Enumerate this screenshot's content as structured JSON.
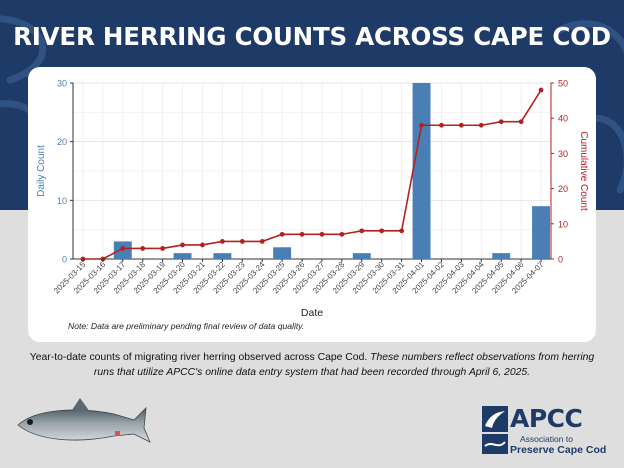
{
  "page": {
    "title": "RIVER HERRING COUNTS ACROSS CAPE COD",
    "caption_normal": "Year-to-date counts of migrating river herring observed across Cape Cod.",
    "caption_italic": "These numbers reflect observations from herring runs that utilize APCC's online data entry system that had been recorded through April 6, 2025.",
    "logo_name": "APCC",
    "logo_sub1": "Association to",
    "logo_sub2": "Preserve Cape Cod",
    "colors": {
      "banner": "#1e3a66",
      "bar": "#4a7fb5",
      "line": "#b22222",
      "background": "#dedede"
    }
  },
  "chart_data": {
    "type": "bar+line",
    "xlabel": "Date",
    "ylabel_left": "Daily Count",
    "ylabel_right": "Cumulative Count",
    "note": "Note: Data are preliminary pending final review of data quality.",
    "ylim_left": [
      0,
      30
    ],
    "ylim_right": [
      0,
      50
    ],
    "yticks_left": [
      0,
      10,
      20,
      30
    ],
    "yticks_right": [
      0,
      10,
      20,
      30,
      40,
      50
    ],
    "grid": true,
    "categories": [
      "2025-03-15",
      "2025-03-16",
      "2025-03-17",
      "2025-03-18",
      "2025-03-19",
      "2025-03-20",
      "2025-03-21",
      "2025-03-22",
      "2025-03-23",
      "2025-03-24",
      "2025-03-25",
      "2025-03-26",
      "2025-03-27",
      "2025-03-28",
      "2025-03-29",
      "2025-03-30",
      "2025-03-31",
      "2025-04-01",
      "2025-04-02",
      "2025-04-03",
      "2025-04-04",
      "2025-04-05",
      "2025-04-06",
      "2025-04-07"
    ],
    "series": [
      {
        "values": [
          0,
          0,
          3,
          0,
          0,
          1,
          0,
          1,
          0,
          0,
          2,
          0,
          0,
          0,
          1,
          0,
          0,
          30,
          0,
          0,
          0,
          1,
          0,
          9
        ]
      },
      {
        "values": [
          0,
          0,
          3,
          3,
          3,
          4,
          4,
          5,
          5,
          5,
          7,
          7,
          7,
          7,
          8,
          8,
          8,
          38,
          38,
          38,
          38,
          39,
          39,
          48
        ]
      }
    ]
  }
}
